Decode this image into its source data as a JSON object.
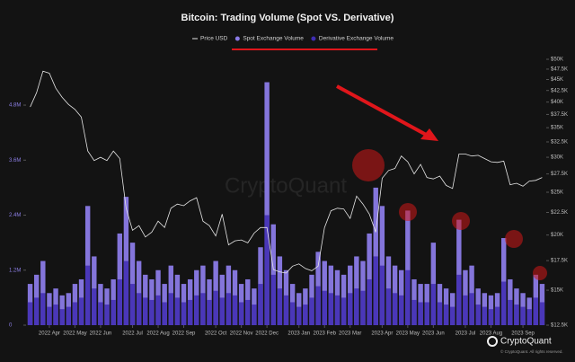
{
  "chart_data": {
    "type": "bar",
    "title": "Bitcoin: Trading Volume (Spot VS. Derivative)",
    "watermark": "CryptoQuant",
    "brand": "CryptoQuant",
    "copyright": "© CryptoQuant. All rights reserved.",
    "legend_order": [
      2,
      0,
      1
    ],
    "categories": [
      null,
      null,
      null,
      "2022 Apr",
      null,
      null,
      null,
      "2022 May",
      null,
      null,
      null,
      "2022 Jun",
      null,
      null,
      null,
      null,
      "2022 Jul",
      null,
      null,
      null,
      "2022 Aug",
      null,
      null,
      null,
      "2022 Sep",
      null,
      null,
      null,
      null,
      "2022 Oct",
      null,
      null,
      null,
      "2022 Nov",
      null,
      null,
      null,
      "2022 Dec",
      null,
      null,
      null,
      null,
      "2023 Jan",
      null,
      null,
      null,
      "2023 Feb",
      null,
      null,
      null,
      "2023 Mar",
      null,
      null,
      null,
      null,
      "2023 Apr",
      null,
      null,
      null,
      "2023 May",
      null,
      null,
      null,
      "2023 Jun",
      null,
      null,
      null,
      null,
      "2023 Jul",
      null,
      null,
      null,
      "2023 Aug",
      null,
      null,
      null,
      null,
      "2023 Sep",
      null,
      null,
      null
    ],
    "series": [
      {
        "name": "Spot Exchange Volume",
        "color": "#8a7ae6",
        "values": [
          900000,
          1100000,
          1400000,
          700000,
          800000,
          650000,
          700000,
          900000,
          1000000,
          2600000,
          1500000,
          900000,
          800000,
          1000000,
          2000000,
          2800000,
          1800000,
          1400000,
          1100000,
          1000000,
          1200000,
          900000,
          1300000,
          1100000,
          900000,
          1000000,
          1200000,
          1300000,
          1000000,
          1400000,
          1100000,
          1300000,
          1200000,
          900000,
          1000000,
          800000,
          1700000,
          5300000,
          2200000,
          1500000,
          1200000,
          900000,
          700000,
          800000,
          1100000,
          1600000,
          1400000,
          1300000,
          1200000,
          1100000,
          1300000,
          1500000,
          1400000,
          2000000,
          3000000,
          2600000,
          1500000,
          1300000,
          1200000,
          2500000,
          1000000,
          900000,
          900000,
          1800000,
          900000,
          800000,
          700000,
          2300000,
          1200000,
          1300000,
          800000,
          700000,
          650000,
          700000,
          1900000,
          1000000,
          800000,
          700000,
          600000,
          1100000,
          900000
        ]
      },
      {
        "name": "Derivative Exchange Volume",
        "color": "#3f2db3",
        "values": [
          500000,
          600000,
          700000,
          400000,
          450000,
          350000,
          400000,
          500000,
          600000,
          1300000,
          800000,
          500000,
          450000,
          550000,
          1000000,
          1400000,
          900000,
          700000,
          600000,
          550000,
          650000,
          500000,
          700000,
          600000,
          500000,
          550000,
          650000,
          700000,
          550000,
          750000,
          600000,
          700000,
          650000,
          500000,
          550000,
          450000,
          900000,
          2400000,
          1100000,
          800000,
          650000,
          500000,
          400000,
          450000,
          600000,
          850000,
          750000,
          700000,
          650000,
          600000,
          700000,
          800000,
          750000,
          1000000,
          1500000,
          1300000,
          800000,
          700000,
          650000,
          1200000,
          550000,
          500000,
          500000,
          900000,
          500000,
          450000,
          400000,
          1100000,
          650000,
          700000,
          450000,
          400000,
          350000,
          400000,
          950000,
          550000,
          450000,
          400000,
          350000,
          600000,
          500000
        ]
      },
      {
        "name": "Price USD",
        "color": "#e6e6e6",
        "axis": "y2",
        "type": "line",
        "values": [
          39000,
          42000,
          47000,
          46500,
          43000,
          41000,
          39500,
          38500,
          37000,
          31000,
          29500,
          30000,
          29500,
          31000,
          29800,
          23000,
          20500,
          21000,
          19800,
          20300,
          21500,
          20800,
          23000,
          23500,
          23300,
          23900,
          24300,
          21500,
          21000,
          19900,
          22300,
          19000,
          19400,
          19500,
          19200,
          20200,
          20800,
          20800,
          16700,
          16500,
          16400,
          17000,
          17200,
          16800,
          16600,
          17000,
          20800,
          22700,
          23000,
          22900,
          21800,
          24500,
          23500,
          22300,
          20300,
          26900,
          28000,
          28300,
          30200,
          29300,
          27500,
          28900,
          27000,
          26800,
          27200,
          25900,
          25500,
          30500,
          30500,
          30200,
          30300,
          29800,
          29300,
          29200,
          29400,
          26000,
          26200,
          25800,
          26500,
          26600,
          27000
        ]
      }
    ],
    "ylim": [
      0,
      5800000
    ],
    "yticks": [
      {
        "value": 0,
        "label": "0"
      },
      {
        "value": 1200000,
        "label": "1.2M"
      },
      {
        "value": 2400000,
        "label": "2.4M"
      },
      {
        "value": 3600000,
        "label": "3.6M"
      },
      {
        "value": 4800000,
        "label": "4.8M"
      }
    ],
    "y2lim": [
      12500,
      50000
    ],
    "y2_scale": "log",
    "y2ticks": [
      {
        "value": 12500,
        "label": "$12.5K"
      },
      {
        "value": 15000,
        "label": "$15K"
      },
      {
        "value": 17500,
        "label": "$17.5K"
      },
      {
        "value": 20000,
        "label": "$20K"
      },
      {
        "value": 22500,
        "label": "$22.5K"
      },
      {
        "value": 25000,
        "label": "$25K"
      },
      {
        "value": 27500,
        "label": "$27.5K"
      },
      {
        "value": 30000,
        "label": "$30K"
      },
      {
        "value": 32500,
        "label": "$32.5K"
      },
      {
        "value": 35000,
        "label": "$35K"
      },
      {
        "value": 37500,
        "label": "$37.5K"
      },
      {
        "value": 40000,
        "label": "$40K"
      },
      {
        "value": 42500,
        "label": "$42.5K"
      },
      {
        "value": 45000,
        "label": "$45K"
      },
      {
        "value": 47500,
        "label": "$47.5K"
      },
      {
        "value": 50000,
        "label": "$50K"
      }
    ]
  }
}
